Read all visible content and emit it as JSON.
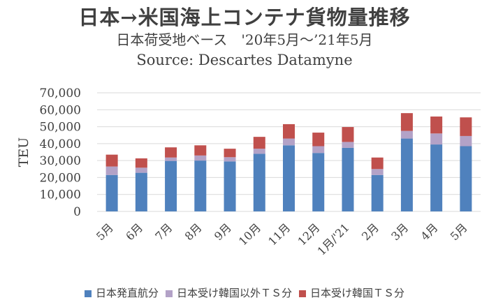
{
  "title": "日本→米国海上コンテナ貨物量推移",
  "subtitle": "日本荷受地ベース　'20年5月～’21年5月",
  "source": "Source: Descartes Datamyne",
  "chart_data": {
    "type": "bar",
    "stacked": true,
    "categories": [
      "5月",
      "6月",
      "7月",
      "8月",
      "9月",
      "10月",
      "11月",
      "12月",
      "1月/'21",
      "2月",
      "3月",
      "4月",
      "5月"
    ],
    "series": [
      {
        "name": "日本発直航分",
        "color": "#4f81bd",
        "values": [
          21500,
          22800,
          29800,
          30000,
          29500,
          34000,
          39000,
          34500,
          37500,
          21500,
          43000,
          39500,
          38500
        ]
      },
      {
        "name": "日本受け韓国以外ＴＳ分",
        "color": "#b3a2c7",
        "values": [
          5000,
          3000,
          2000,
          3000,
          2500,
          3000,
          4000,
          4000,
          3500,
          3500,
          4500,
          6500,
          6000
        ]
      },
      {
        "name": "日本受け韓国ＴＳ分",
        "color": "#c0504d",
        "values": [
          7000,
          5500,
          6000,
          6000,
          5000,
          7000,
          8500,
          8000,
          8800,
          6800,
          10500,
          10000,
          11000
        ]
      }
    ],
    "ylabel": "TEU",
    "xlabel": "",
    "ylim": [
      0,
      70000
    ],
    "yticks": [
      "0",
      "10,000",
      "20,000",
      "30,000",
      "40,000",
      "50,000",
      "60,000",
      "70,000"
    ],
    "grid": true,
    "legend": "bottom"
  }
}
